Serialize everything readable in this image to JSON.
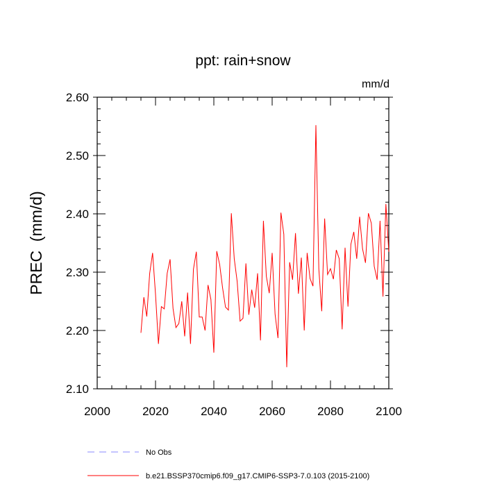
{
  "chart_data": {
    "type": "line",
    "title": "ppt: rain+snow",
    "units": "mm/d",
    "ylabel": "PREC  (mm/d)",
    "xlabel": "",
    "xlim": [
      2000,
      2100
    ],
    "ylim": [
      2.1,
      2.6
    ],
    "x_ticks": [
      2000,
      2020,
      2040,
      2060,
      2080,
      2100
    ],
    "y_ticks": [
      "2.10",
      "2.20",
      "2.30",
      "2.40",
      "2.50",
      "2.60"
    ],
    "series": [
      {
        "name": "b.e21.BSSP370cmip6.f09_g17.CMIP6-SSP3-7.0.103 (2015-2100)",
        "color": "#ff0000",
        "style": "solid",
        "x": [
          2015,
          2016,
          2017,
          2018,
          2019,
          2020,
          2021,
          2022,
          2023,
          2024,
          2025,
          2026,
          2027,
          2028,
          2029,
          2030,
          2031,
          2032,
          2033,
          2034,
          2035,
          2036,
          2037,
          2038,
          2039,
          2040,
          2041,
          2042,
          2043,
          2044,
          2045,
          2046,
          2047,
          2048,
          2049,
          2050,
          2051,
          2052,
          2053,
          2054,
          2055,
          2056,
          2057,
          2058,
          2059,
          2060,
          2061,
          2062,
          2063,
          2064,
          2065,
          2066,
          2067,
          2068,
          2069,
          2070,
          2071,
          2072,
          2073,
          2074,
          2075,
          2076,
          2077,
          2078,
          2079,
          2080,
          2081,
          2082,
          2083,
          2084,
          2085,
          2086,
          2087,
          2088,
          2089,
          2090,
          2091,
          2092,
          2093,
          2094,
          2095,
          2096,
          2097,
          2098,
          2099,
          2100
        ],
        "values": [
          2.196,
          2.257,
          2.224,
          2.298,
          2.333,
          2.262,
          2.177,
          2.241,
          2.237,
          2.298,
          2.322,
          2.238,
          2.205,
          2.212,
          2.25,
          2.19,
          2.265,
          2.177,
          2.305,
          2.335,
          2.223,
          2.223,
          2.2,
          2.278,
          2.253,
          2.162,
          2.336,
          2.313,
          2.273,
          2.24,
          2.235,
          2.401,
          2.323,
          2.284,
          2.216,
          2.221,
          2.315,
          2.227,
          2.27,
          2.239,
          2.298,
          2.183,
          2.388,
          2.293,
          2.264,
          2.333,
          2.228,
          2.187,
          2.402,
          2.365,
          2.137,
          2.317,
          2.287,
          2.367,
          2.263,
          2.325,
          2.2,
          2.333,
          2.289,
          2.276,
          2.552,
          2.306,
          2.233,
          2.392,
          2.296,
          2.306,
          2.288,
          2.338,
          2.323,
          2.202,
          2.342,
          2.241,
          2.348,
          2.369,
          2.323,
          2.395,
          2.34,
          2.316,
          2.401,
          2.384,
          2.31,
          2.287,
          2.388,
          2.258,
          2.417,
          2.335
        ]
      },
      {
        "name": "No Obs",
        "color": "#8888ff",
        "style": "dashed",
        "x": [],
        "values": []
      }
    ],
    "legend_position": "bottom-left"
  }
}
